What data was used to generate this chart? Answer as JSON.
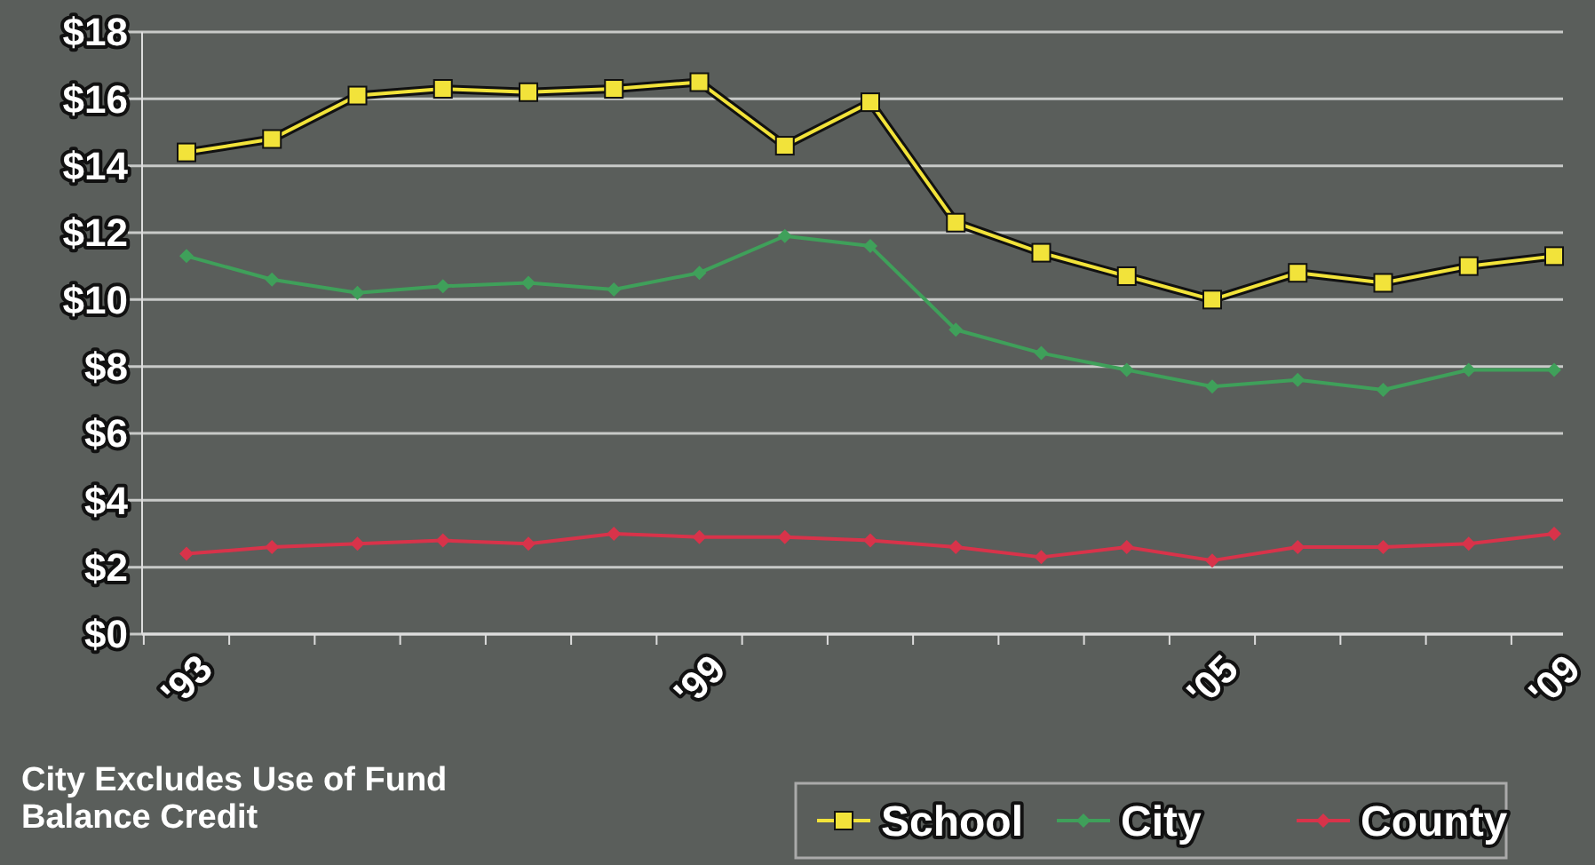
{
  "chart_data": {
    "type": "line",
    "categories": [
      "'93",
      null,
      null,
      null,
      null,
      null,
      "'99",
      null,
      null,
      null,
      null,
      null,
      "'05",
      null,
      null,
      null,
      "'09"
    ],
    "series": [
      {
        "name": "School",
        "color": "#f2e33a",
        "marker": "square",
        "values": [
          14.4,
          14.8,
          16.1,
          16.3,
          16.2,
          16.3,
          16.5,
          14.6,
          15.9,
          12.3,
          11.4,
          10.7,
          10.0,
          10.8,
          10.5,
          11.0,
          11.3
        ]
      },
      {
        "name": "City",
        "color": "#3fa05a",
        "marker": "diamond",
        "values": [
          11.3,
          10.6,
          10.2,
          10.4,
          10.5,
          10.3,
          10.8,
          11.9,
          11.6,
          9.1,
          8.4,
          7.9,
          7.4,
          7.6,
          7.3,
          7.9,
          7.9
        ]
      },
      {
        "name": "County",
        "color": "#d8334a",
        "marker": "diamond",
        "values": [
          2.4,
          2.6,
          2.7,
          2.8,
          2.7,
          3.0,
          2.9,
          2.9,
          2.8,
          2.6,
          2.3,
          2.6,
          2.2,
          2.6,
          2.6,
          2.7,
          3.0
        ]
      }
    ],
    "ylim": [
      0,
      18
    ],
    "yticks": [
      {
        "value": 0,
        "label": "$0"
      },
      {
        "value": 2,
        "label": "$2"
      },
      {
        "value": 4,
        "label": "$4"
      },
      {
        "value": 6,
        "label": "$6"
      },
      {
        "value": 8,
        "label": "$8"
      },
      {
        "value": 10,
        "label": "$10"
      },
      {
        "value": 12,
        "label": "$12"
      },
      {
        "value": 14,
        "label": "$14"
      },
      {
        "value": 16,
        "label": "$16"
      },
      {
        "value": 18,
        "label": "$18"
      }
    ],
    "grid": "y",
    "legend": "bottom right",
    "annotations": [
      "City  Excludes Use of Fund Balance Credit"
    ]
  }
}
